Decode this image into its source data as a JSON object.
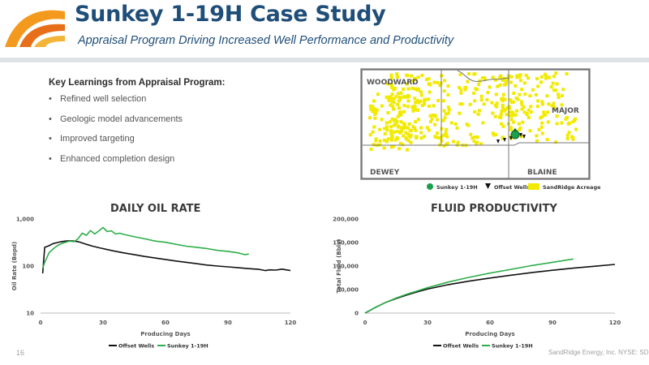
{
  "header": {
    "title": "Sunkey 1-19H Case Study",
    "subtitle": "Appraisal Program Driving Increased Well Performance and Productivity"
  },
  "learnings": {
    "title": "Key Learnings from Appraisal Program:",
    "items": [
      "Refined well selection",
      "Geologic model advancements",
      "Improved targeting",
      "Enhanced completion design"
    ]
  },
  "map": {
    "counties": [
      "WOODWARD",
      "MAJOR",
      "DEWEY",
      "BLAINE"
    ],
    "legend": [
      "Sunkey 1-19H",
      "Offset Wells",
      "SandRidge Acreage"
    ],
    "colors": {
      "acreage": "#f2ea00",
      "sunkey": "#1aa04a",
      "offset": "#111111",
      "frame": "#444444",
      "label_bg": "#a8a8a8"
    }
  },
  "footer": {
    "page_number": "16",
    "company": "SandRidge Energy, Inc. NYSE: SD"
  },
  "colors": {
    "offset": "#111111",
    "sunkey": "#2fae4a",
    "title": "#1f4e79"
  },
  "chart_data": [
    {
      "type": "line",
      "title": "DAILY OIL RATE",
      "xlabel": "Producing Days",
      "ylabel": "Oil Rate (Bopd)",
      "y_scale": "log",
      "xlim": [
        0,
        120
      ],
      "ylim": [
        10,
        1000
      ],
      "x_ticks": [
        "0",
        "30",
        "60",
        "90",
        "120"
      ],
      "y_ticks": [
        "10",
        "100",
        "1,000"
      ],
      "grid": false,
      "legend_position": "bottom",
      "series": [
        {
          "name": "Offset Wells",
          "x": [
            1,
            2,
            4,
            6,
            8,
            10,
            12,
            14,
            16,
            18,
            20,
            22,
            25,
            28,
            30,
            35,
            40,
            45,
            50,
            55,
            60,
            65,
            70,
            75,
            80,
            85,
            90,
            95,
            100,
            105,
            108,
            110,
            113,
            116,
            120
          ],
          "y": [
            70,
            250,
            270,
            300,
            315,
            330,
            340,
            345,
            340,
            330,
            310,
            290,
            265,
            245,
            235,
            210,
            190,
            175,
            160,
            148,
            138,
            128,
            120,
            112,
            105,
            100,
            96,
            92,
            88,
            85,
            80,
            83,
            82,
            86,
            80
          ]
        },
        {
          "name": "Sunkey 1-19H",
          "x": [
            1,
            2,
            3,
            4,
            6,
            8,
            10,
            12,
            14,
            16,
            18,
            20,
            22,
            24,
            26,
            28,
            30,
            32,
            34,
            36,
            38,
            40,
            45,
            50,
            55,
            60,
            65,
            70,
            75,
            80,
            85,
            90,
            95,
            98,
            100
          ],
          "y": [
            90,
            120,
            150,
            190,
            230,
            270,
            300,
            320,
            340,
            330,
            380,
            500,
            450,
            570,
            480,
            560,
            660,
            540,
            560,
            480,
            500,
            470,
            420,
            380,
            340,
            320,
            290,
            265,
            250,
            235,
            215,
            205,
            190,
            175,
            180
          ]
        }
      ]
    },
    {
      "type": "line",
      "title": "FLUID PRODUCTIVITY",
      "xlabel": "Producing Days",
      "ylabel": "Total Fluid (Bbls)",
      "xlim": [
        0,
        120
      ],
      "ylim": [
        0,
        200000
      ],
      "x_ticks": [
        "0",
        "30",
        "60",
        "90",
        "120"
      ],
      "y_ticks": [
        "0",
        "50,000",
        "100,000",
        "150,000",
        "200,000"
      ],
      "grid": false,
      "legend_position": "bottom",
      "series": [
        {
          "name": "Offset Wells",
          "x": [
            0,
            5,
            10,
            15,
            20,
            25,
            30,
            40,
            50,
            60,
            70,
            80,
            90,
            100,
            110,
            120
          ],
          "y": [
            0,
            12000,
            23000,
            31000,
            38500,
            45000,
            51000,
            60500,
            68000,
            74500,
            80500,
            86000,
            91000,
            95500,
            99500,
            103500
          ]
        },
        {
          "name": "Sunkey 1-19H",
          "x": [
            0,
            5,
            10,
            15,
            20,
            25,
            30,
            40,
            50,
            60,
            70,
            80,
            90,
            100
          ],
          "y": [
            0,
            12000,
            23000,
            32000,
            40000,
            47000,
            54000,
            66000,
            76000,
            85000,
            93000,
            101000,
            108000,
            115000
          ]
        }
      ]
    }
  ]
}
